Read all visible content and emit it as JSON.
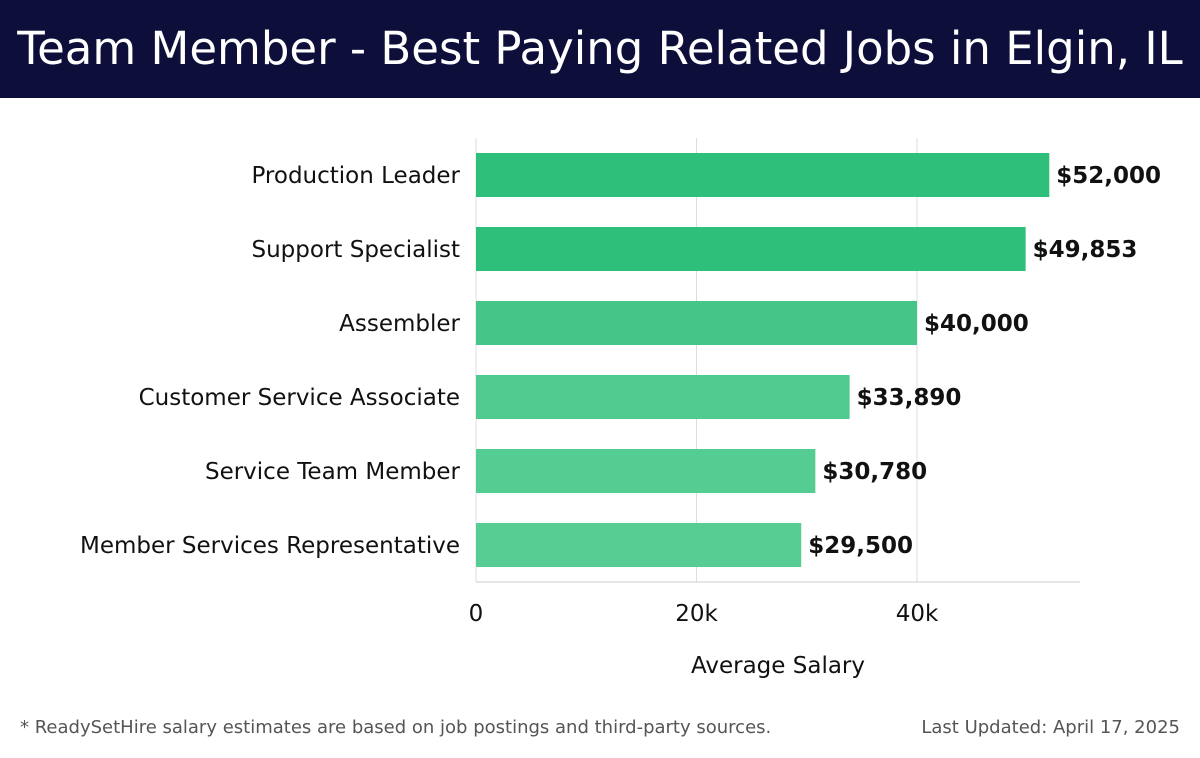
{
  "header": {
    "title": "Team Member - Best Paying Related Jobs in Elgin, IL"
  },
  "footer": {
    "note": "* ReadySetHire salary estimates are based on job postings and third-party sources.",
    "updated": "Last Updated: April 17, 2025"
  },
  "colors": {
    "header_bg": "#0d0f3a",
    "bar_colors": [
      "#2ebf7a",
      "#2ebf7a",
      "#45c688",
      "#50ca8e",
      "#55cc92",
      "#57cd94"
    ],
    "grid": "#dddddd"
  },
  "chart_data": {
    "type": "bar",
    "orientation": "horizontal",
    "title": "Team Member - Best Paying Related Jobs in Elgin, IL",
    "xlabel": "Average Salary",
    "ylabel": "",
    "categories": [
      "Production Leader",
      "Support Specialist",
      "Assembler",
      "Customer Service Associate",
      "Service Team Member",
      "Member Services Representative"
    ],
    "values": [
      52000,
      49853,
      40000,
      33890,
      30780,
      29500
    ],
    "value_labels": [
      "$52,000",
      "$49,853",
      "$40,000",
      "$33,890",
      "$30,780",
      "$29,500"
    ],
    "xlim": [
      0,
      55000
    ],
    "ticks": [
      0,
      20000,
      40000
    ],
    "tick_labels": [
      "0",
      "20k",
      "40k"
    ],
    "grid": true
  }
}
